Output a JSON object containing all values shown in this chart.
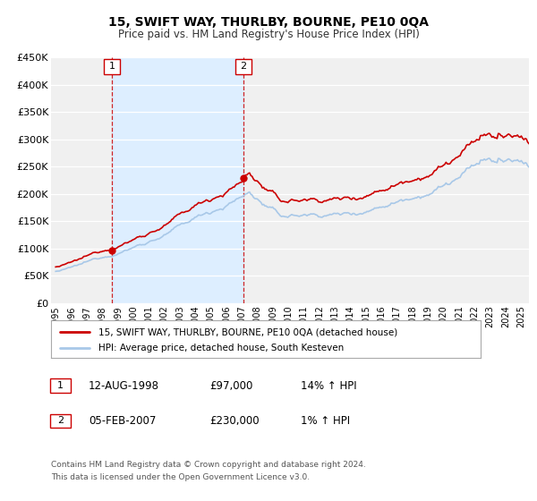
{
  "title": "15, SWIFT WAY, THURLBY, BOURNE, PE10 0QA",
  "subtitle": "Price paid vs. HM Land Registry's House Price Index (HPI)",
  "ylim": [
    0,
    450000
  ],
  "yticks": [
    0,
    50000,
    100000,
    150000,
    200000,
    250000,
    300000,
    350000,
    400000,
    450000
  ],
  "ytick_labels": [
    "£0",
    "£50K",
    "£100K",
    "£150K",
    "£200K",
    "£250K",
    "£300K",
    "£350K",
    "£400K",
    "£450K"
  ],
  "xlim_start": 1994.7,
  "xlim_end": 2025.5,
  "xtick_years": [
    1995,
    1996,
    1997,
    1998,
    1999,
    2000,
    2001,
    2002,
    2003,
    2004,
    2005,
    2006,
    2007,
    2008,
    2009,
    2010,
    2011,
    2012,
    2013,
    2014,
    2015,
    2016,
    2017,
    2018,
    2019,
    2020,
    2021,
    2022,
    2023,
    2024,
    2025
  ],
  "sale1_date": 1998.616,
  "sale1_price": 97000,
  "sale2_date": 2007.092,
  "sale2_price": 230000,
  "hpi_color": "#a8c8e8",
  "price_color": "#cc0000",
  "shading_color": "#ddeeff",
  "vline_color": "#cc0000",
  "bg_color": "#f0f0f0",
  "grid_color": "#ffffff",
  "legend_label_price": "15, SWIFT WAY, THURLBY, BOURNE, PE10 0QA (detached house)",
  "legend_label_hpi": "HPI: Average price, detached house, South Kesteven",
  "table_row1": [
    "1",
    "12-AUG-1998",
    "£97,000",
    "14% ↑ HPI"
  ],
  "table_row2": [
    "2",
    "05-FEB-2007",
    "£230,000",
    "1% ↑ HPI"
  ],
  "footnote1": "Contains HM Land Registry data © Crown copyright and database right 2024.",
  "footnote2": "This data is licensed under the Open Government Licence v3.0."
}
